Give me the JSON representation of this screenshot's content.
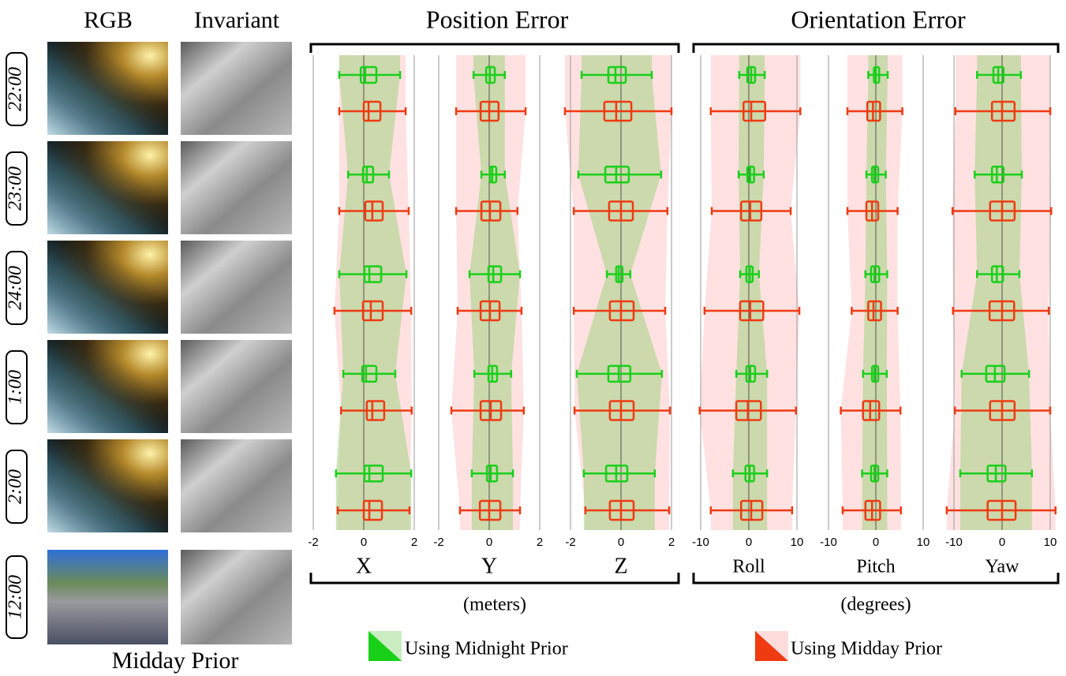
{
  "column_titles": [
    "RGB",
    "Invariant"
  ],
  "group_titles": [
    "Position Error",
    "Orientation Error"
  ],
  "units": [
    "(meters)",
    "(degrees)"
  ],
  "rows": [
    "22:00",
    "23:00",
    "24:00",
    "1:00",
    "2:00"
  ],
  "prior_time": "12:00",
  "prior_label": "Midday Prior",
  "legend": [
    {
      "name": "Using Midnight Prior",
      "color": "#19d019"
    },
    {
      "name": "Using Midday Prior",
      "color": "#ef3a12"
    }
  ],
  "chart_data": [
    {
      "type": "box",
      "xlabel": "X",
      "xlim": [
        -2,
        2
      ],
      "xticks": [
        -2,
        0,
        2
      ],
      "series": [
        {
          "boxes": [
            [
              -0.97,
              -0.12,
              0.06,
              0.5,
              1.44
            ],
            [
              -0.62,
              -0.03,
              0.12,
              0.37,
              1.0
            ],
            [
              -0.97,
              0.03,
              0.22,
              0.69,
              1.69
            ],
            [
              -0.81,
              -0.06,
              0.09,
              0.5,
              1.25
            ],
            [
              -1.1,
              0.03,
              0.22,
              0.75,
              1.88
            ]
          ]
        },
        {
          "boxes": [
            [
              -0.97,
              0,
              0.19,
              0.66,
              1.66
            ],
            [
              -0.97,
              0.06,
              0.34,
              0.75,
              1.78
            ],
            [
              -1.16,
              -0.03,
              0.28,
              0.75,
              1.88
            ],
            [
              -0.9,
              0.12,
              0.34,
              0.81,
              1.9
            ],
            [
              -1.03,
              0,
              0.22,
              0.72,
              1.81
            ]
          ]
        }
      ]
    },
    {
      "type": "box",
      "xlabel": "Y",
      "xlim": [
        -2,
        2
      ],
      "xticks": [
        -2,
        0,
        2
      ],
      "series": [
        {
          "boxes": [
            [
              -0.62,
              -0.12,
              0.03,
              0.22,
              0.62
            ],
            [
              -0.31,
              0.03,
              0.12,
              0.28,
              0.62
            ],
            [
              -0.78,
              -0.03,
              0.16,
              0.47,
              1.22
            ],
            [
              -0.59,
              -0.03,
              0.12,
              0.31,
              0.87
            ],
            [
              -0.69,
              -0.09,
              0.06,
              0.31,
              0.94
            ]
          ]
        },
        {
          "boxes": [
            [
              -1.31,
              -0.34,
              0,
              0.37,
              1.44
            ],
            [
              -1.31,
              -0.31,
              0.03,
              0.44,
              1.12
            ],
            [
              -1.25,
              -0.34,
              0.03,
              0.41,
              1.28
            ],
            [
              -1.5,
              -0.34,
              0.06,
              0.47,
              1.37
            ],
            [
              -1.16,
              -0.37,
              0,
              0.44,
              1.22
            ]
          ]
        }
      ]
    },
    {
      "type": "box",
      "xlabel": "Z",
      "xlim": [
        -2,
        2
      ],
      "xticks": [
        -2,
        0,
        2
      ],
      "series": [
        {
          "boxes": [
            [
              -1.56,
              -0.5,
              -0.22,
              0.19,
              1.22
            ],
            [
              -1.69,
              -0.62,
              -0.19,
              0.31,
              1.59
            ],
            [
              -0.56,
              -0.19,
              -0.09,
              0.06,
              0.37
            ],
            [
              -1.75,
              -0.5,
              -0.09,
              0.37,
              1.62
            ],
            [
              -1.47,
              -0.59,
              -0.19,
              0.25,
              1.34
            ]
          ]
        },
        {
          "boxes": [
            [
              -2.22,
              -0.66,
              -0.19,
              0.41,
              2.0
            ],
            [
              -1.87,
              -0.47,
              0,
              0.47,
              1.84
            ],
            [
              -1.87,
              -0.44,
              0,
              0.5,
              1.75
            ],
            [
              -1.84,
              -0.44,
              0,
              0.5,
              1.94
            ],
            [
              -1.41,
              -0.44,
              0,
              0.5,
              1.91
            ]
          ]
        }
      ]
    },
    {
      "type": "box",
      "xlabel": "Roll",
      "xlim": [
        -10,
        10
      ],
      "xticks": [
        -10,
        0,
        10
      ],
      "series": [
        {
          "boxes": [
            [
              -2,
              -0.3,
              0.5,
              1.3,
              3.3
            ],
            [
              -2.1,
              -0.3,
              0.3,
              1.1,
              3.1
            ],
            [
              -1.8,
              -0.5,
              0.2,
              0.8,
              2.1
            ],
            [
              -2.6,
              -0.5,
              0.3,
              1.3,
              3.8
            ],
            [
              -3.3,
              -0.7,
              0.2,
              1.1,
              3.8
            ]
          ]
        },
        {
          "boxes": [
            [
              -7.9,
              -1.1,
              0.5,
              3.4,
              10.7
            ],
            [
              -7.7,
              -1.6,
              0.3,
              2.6,
              8.7
            ],
            [
              -9.2,
              -1.8,
              0.3,
              3,
              10.5
            ],
            [
              -10.2,
              -2.6,
              -0.2,
              2.5,
              9.8
            ],
            [
              -7.9,
              -1.6,
              0.5,
              2.8,
              9
            ]
          ]
        }
      ]
    },
    {
      "type": "box",
      "xlabel": "Pitch",
      "xlim": [
        -10,
        10
      ],
      "xticks": [
        -10,
        0,
        10
      ],
      "series": [
        {
          "boxes": [
            [
              -1.6,
              -0.4,
              0,
              0.7,
              2.5
            ],
            [
              -2,
              -0.8,
              -0.3,
              0.5,
              2.1
            ],
            [
              -2.2,
              -1,
              -0.3,
              0.7,
              2.4
            ],
            [
              -2.7,
              -0.8,
              -0.3,
              0.5,
              2.3
            ],
            [
              -2.9,
              -1,
              -0.3,
              0.5,
              2.4
            ]
          ]
        },
        {
          "boxes": [
            [
              -6,
              -1.8,
              -0.6,
              0.9,
              5.6
            ],
            [
              -6,
              -2,
              -0.8,
              0.5,
              4.6
            ],
            [
              -5.1,
              -1.6,
              -0.5,
              1.1,
              4.6
            ],
            [
              -7.4,
              -2.7,
              -1.2,
              0.7,
              5.2
            ],
            [
              -7,
              -2.2,
              -0.8,
              0.9,
              5.3
            ]
          ]
        }
      ]
    },
    {
      "type": "box",
      "xlabel": "Yaw",
      "xlim": [
        -10,
        10
      ],
      "xticks": [
        -10,
        0,
        10
      ],
      "series": [
        {
          "boxes": [
            [
              -5.2,
              -1.8,
              -0.8,
              0.3,
              3.9
            ],
            [
              -5.7,
              -2.1,
              -1.1,
              0.3,
              4.1
            ],
            [
              -5.2,
              -2.1,
              -1.1,
              0.2,
              3.6
            ],
            [
              -8.4,
              -3.3,
              -1.5,
              0.5,
              5.6
            ],
            [
              -8.7,
              -3,
              -1.3,
              0.7,
              6.2
            ]
          ]
        },
        {
          "boxes": [
            [
              -9.7,
              -2.1,
              0,
              2.6,
              10
            ],
            [
              -10.3,
              -2.5,
              0,
              2.6,
              10.2
            ],
            [
              -10.2,
              -2.6,
              0,
              2.5,
              9.7
            ],
            [
              -9.8,
              -2.5,
              0,
              2.6,
              10
            ],
            [
              -11.5,
              -3,
              0,
              2.8,
              11.1
            ]
          ]
        }
      ]
    }
  ]
}
